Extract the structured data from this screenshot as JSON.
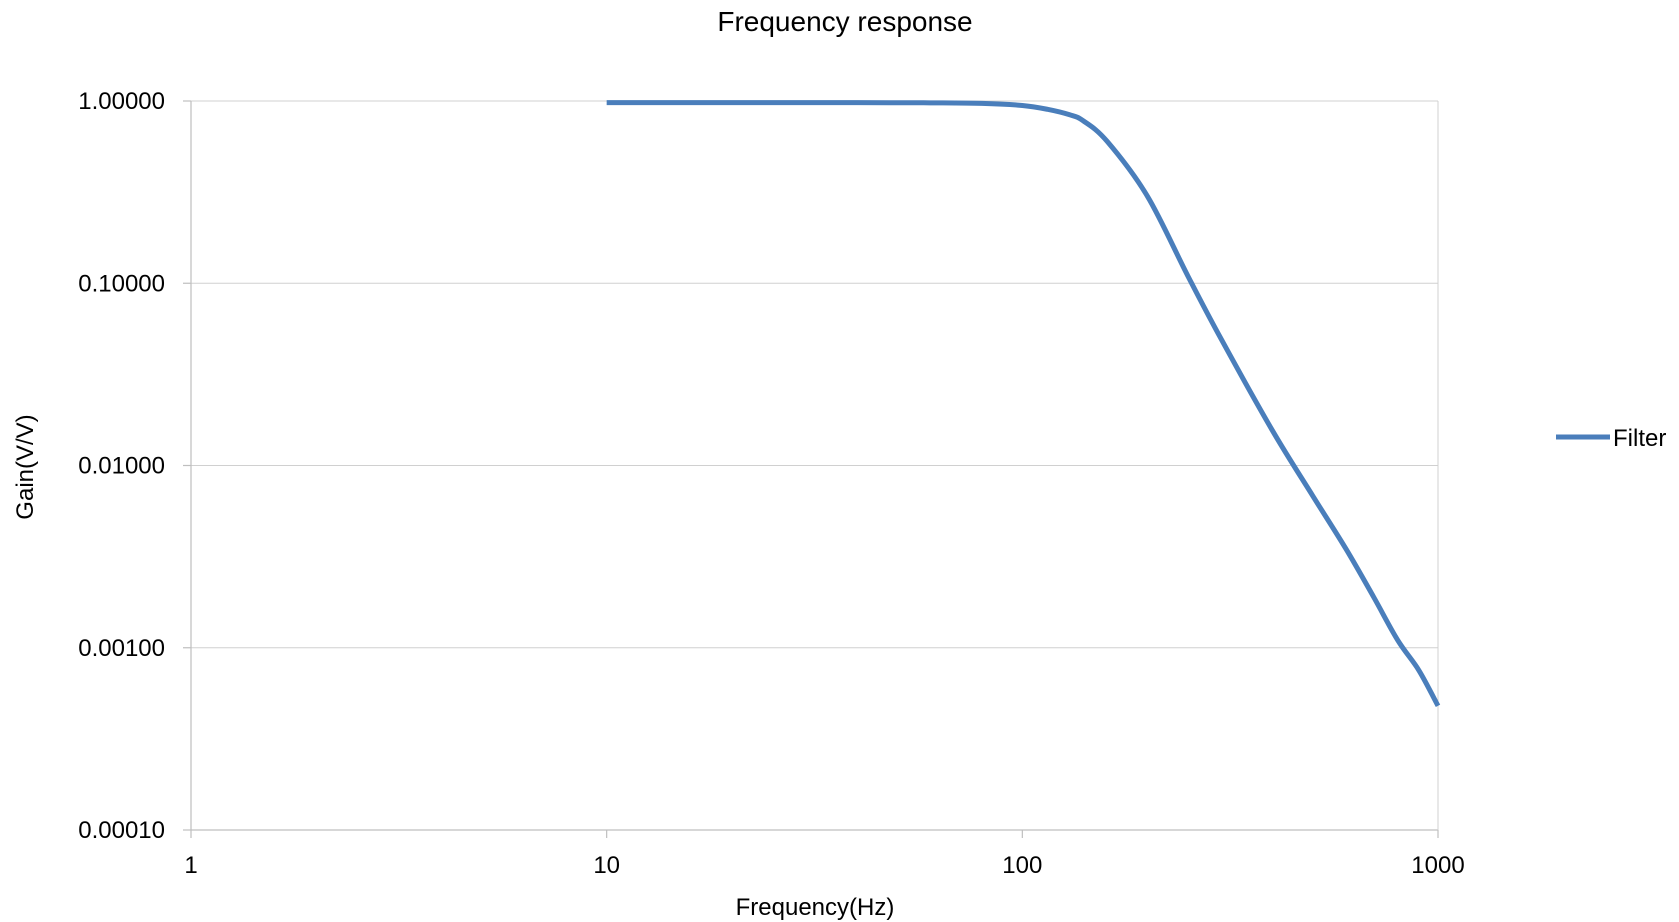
{
  "chart_data": {
    "type": "line",
    "title": "Frequency response",
    "xlabel": "Frequency(Hz)",
    "ylabel": "Gain(V/V)",
    "x_scale": "log",
    "y_scale": "log",
    "xlim": [
      1,
      1000
    ],
    "ylim": [
      0.0001,
      1
    ],
    "x_ticks": [
      "1",
      "10",
      "100",
      "1000"
    ],
    "y_ticks": [
      "1.00000",
      "0.10000",
      "0.01000",
      "0.00100",
      "0.00010"
    ],
    "grid": "horizontal",
    "legend_position": "right",
    "series": [
      {
        "name": "Filter",
        "color": "#4a7ebb",
        "x": [
          10,
          20,
          40,
          60,
          80,
          100,
          115,
          130,
          140,
          160,
          200,
          250,
          300,
          400,
          500,
          600,
          700,
          800,
          900,
          1000
        ],
        "y": [
          0.98,
          0.98,
          0.98,
          0.977,
          0.97,
          0.945,
          0.9,
          0.84,
          0.78,
          0.6,
          0.3,
          0.11,
          0.05,
          0.0155,
          0.0068,
          0.0035,
          0.0019,
          0.0011,
          0.00075,
          0.00048
        ]
      }
    ]
  }
}
